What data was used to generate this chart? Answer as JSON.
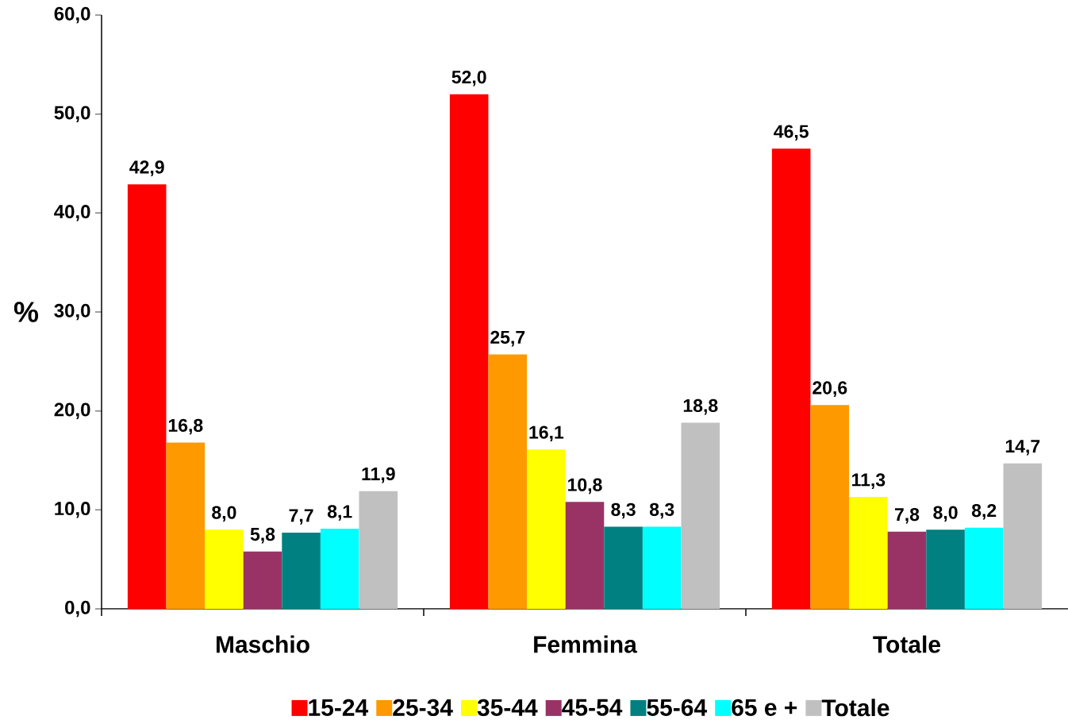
{
  "chart_data": {
    "type": "bar",
    "ylabel": "%",
    "categories": [
      "Maschio",
      "Femmina",
      "Totale"
    ],
    "series": [
      {
        "name": "15-24",
        "color": "#ff0000",
        "values": [
          42.9,
          52.0,
          46.5
        ],
        "value_labels": [
          "42,9",
          "52,0",
          "46,5"
        ]
      },
      {
        "name": "25-34",
        "color": "#ff9900",
        "values": [
          16.8,
          25.7,
          20.6
        ],
        "value_labels": [
          "16,8",
          "25,7",
          "20,6"
        ]
      },
      {
        "name": "35-44",
        "color": "#ffff00",
        "values": [
          8.0,
          16.1,
          11.3
        ],
        "value_labels": [
          "8,0",
          "16,1",
          "11,3"
        ]
      },
      {
        "name": "45-54",
        "color": "#993366",
        "values": [
          5.8,
          10.8,
          7.8
        ],
        "value_labels": [
          "5,8",
          "10,8",
          "7,8"
        ]
      },
      {
        "name": "55-64",
        "color": "#008080",
        "values": [
          7.7,
          8.3,
          8.0
        ],
        "value_labels": [
          "7,7",
          "8,3",
          "8,0"
        ]
      },
      {
        "name": "65 e +",
        "color": "#00ffff",
        "values": [
          8.1,
          8.3,
          8.2
        ],
        "value_labels": [
          "8,1",
          "8,3",
          "8,2"
        ]
      },
      {
        "name": "Totale",
        "color": "#c0c0c0",
        "values": [
          11.9,
          18.8,
          14.7
        ],
        "value_labels": [
          "11,9",
          "18,8",
          "14,7"
        ]
      }
    ],
    "ylim": [
      0,
      60
    ],
    "yticks": [
      {
        "value": 0,
        "label": "0,0"
      },
      {
        "value": 10,
        "label": "10,0"
      },
      {
        "value": 20,
        "label": "20,0"
      },
      {
        "value": 30,
        "label": "30,0"
      },
      {
        "value": 40,
        "label": "40,0"
      },
      {
        "value": 50,
        "label": "50,0"
      },
      {
        "value": 60,
        "label": "60,0"
      }
    ],
    "legend": "bottom"
  }
}
